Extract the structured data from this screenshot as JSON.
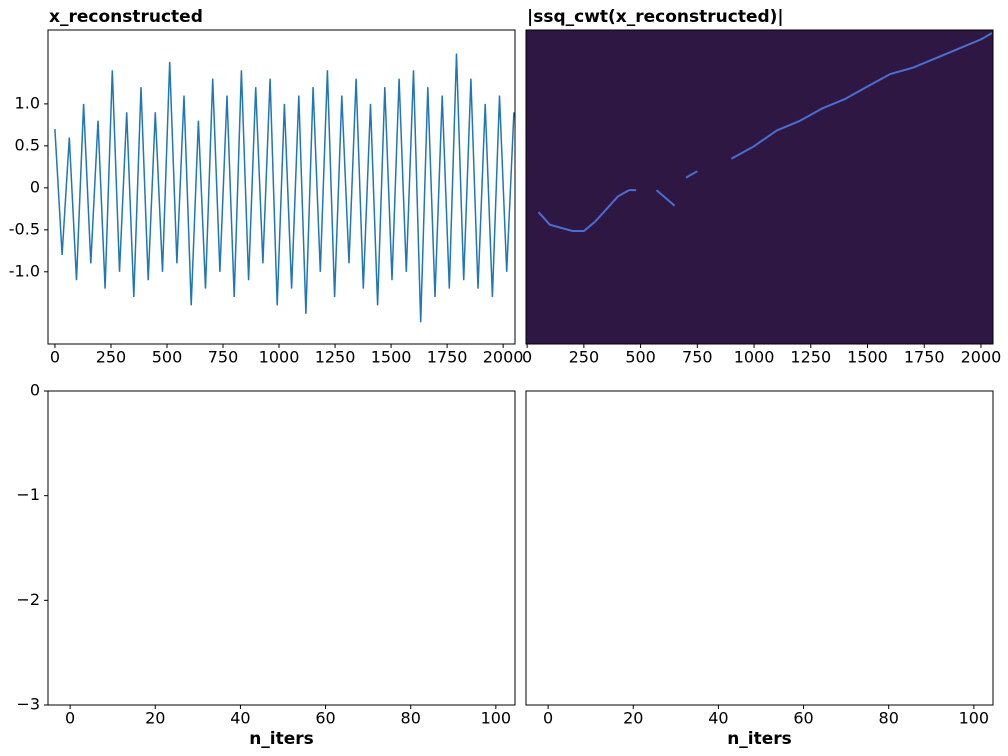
{
  "chart_data": [
    {
      "type": "line",
      "title": "x_reconstructed",
      "x": [
        0,
        32,
        64,
        96,
        128,
        160,
        192,
        224,
        256,
        288,
        320,
        352,
        384,
        416,
        448,
        480,
        512,
        544,
        576,
        608,
        640,
        672,
        704,
        736,
        768,
        800,
        832,
        864,
        896,
        928,
        960,
        992,
        1024,
        1056,
        1088,
        1120,
        1152,
        1184,
        1216,
        1248,
        1280,
        1312,
        1344,
        1376,
        1408,
        1440,
        1472,
        1504,
        1536,
        1568,
        1600,
        1632,
        1664,
        1696,
        1728,
        1760,
        1792,
        1824,
        1856,
        1888,
        1920,
        1952,
        1984,
        2016,
        2048
      ],
      "series": [
        {
          "color": "#1f77b4",
          "values": [
            0.7,
            -0.8,
            0.6,
            -1.1,
            1.0,
            -0.9,
            0.8,
            -1.2,
            1.4,
            -1.0,
            0.9,
            -1.3,
            1.2,
            -1.1,
            0.9,
            -1.0,
            1.5,
            -0.9,
            1.1,
            -1.4,
            0.8,
            -1.2,
            1.3,
            -1.0,
            1.1,
            -1.3,
            1.4,
            -1.1,
            1.2,
            -0.9,
            1.3,
            -1.4,
            1.0,
            -1.2,
            1.1,
            -1.5,
            1.2,
            -1.0,
            1.4,
            -1.3,
            1.1,
            -0.9,
            1.3,
            -1.2,
            1.0,
            -1.4,
            1.2,
            -1.1,
            1.3,
            -1.0,
            1.4,
            -1.6,
            1.2,
            -1.3,
            1.1,
            -1.2,
            1.6,
            -1.1,
            1.3,
            -1.2,
            1.0,
            -1.3,
            1.1,
            -1.0,
            0.9
          ]
        }
      ],
      "xlim": [
        -31,
        2053
      ],
      "xticks": [
        0,
        250,
        500,
        750,
        1000,
        1250,
        1500,
        1750,
        2000
      ],
      "ylim": [
        -1.86,
        1.88
      ],
      "yticks": [
        {
          "value": 1,
          "label": "1.0"
        },
        0.5,
        0,
        -0.5,
        {
          "value": -1,
          "label": "-1.0"
        }
      ]
    },
    {
      "type": "heatmap",
      "title": "|ssq_cwt(x_reconstructed)|",
      "background": "#2e1743",
      "x": [
        50,
        100,
        200,
        250,
        300,
        350,
        400,
        450,
        480,
        520,
        570,
        650,
        680,
        700,
        750,
        850,
        900,
        1000,
        1100,
        1200,
        1300,
        1400,
        1500,
        1600,
        1700,
        1800,
        1900,
        2000,
        2048
      ],
      "series": [
        {
          "color": "#4a6fd0",
          "values": [
            0.42,
            0.38,
            0.36,
            0.36,
            0.39,
            0.43,
            0.47,
            0.49,
            0.49,
            null,
            0.49,
            0.44,
            null,
            0.53,
            0.55,
            null,
            0.59,
            0.63,
            0.68,
            0.71,
            0.75,
            0.78,
            0.82,
            0.86,
            0.88,
            0.91,
            0.94,
            0.97,
            0.99
          ]
        }
      ],
      "xlim": [
        -5,
        2053
      ],
      "xticks": [
        0,
        250,
        500,
        750,
        1000,
        1250,
        1500,
        1750,
        2000
      ],
      "ylim": [
        0,
        1
      ]
    },
    {
      "type": "line",
      "xlabel": "n_iters",
      "xlim": [
        -5.2,
        104.5
      ],
      "xticks": [
        0,
        20,
        40,
        60,
        80,
        100
      ],
      "ylim": [
        -3,
        0
      ],
      "yticks": [
        0,
        {
          "value": -1,
          "label": "−1"
        },
        {
          "value": -2,
          "label": "−2"
        },
        {
          "value": -3,
          "label": "−3"
        }
      ]
    },
    {
      "type": "line",
      "xlabel": "n_iters",
      "xlim": [
        -5.2,
        104.5
      ],
      "xticks": [
        0,
        20,
        40,
        60,
        80,
        100
      ]
    }
  ]
}
